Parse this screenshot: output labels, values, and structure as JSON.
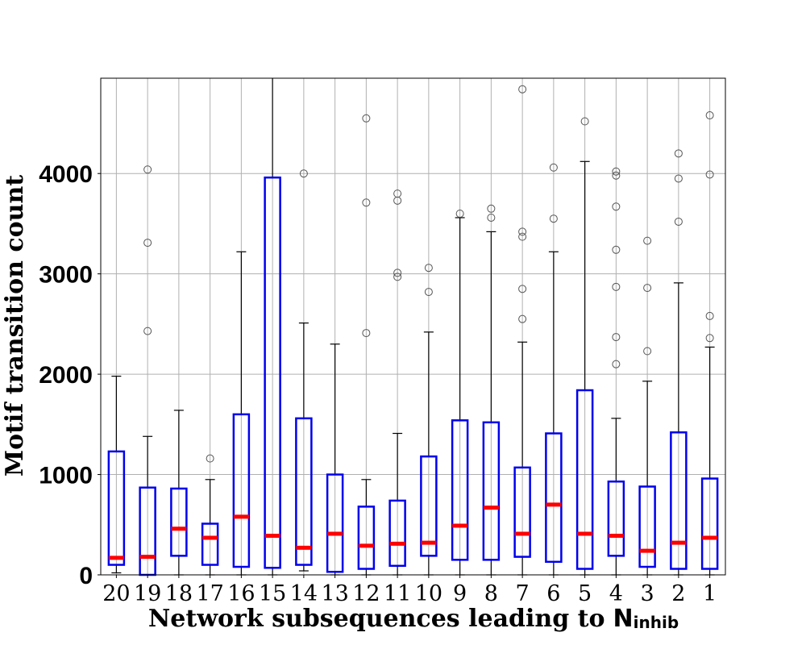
{
  "chart_data": {
    "type": "box",
    "ylabel": "Motif transition count",
    "xlabel_main": "Network subsequences leading to",
    "xlabel_symbol": "N",
    "xlabel_subscript": "inhib",
    "ylim": [
      0,
      4950
    ],
    "yticks": [
      "0",
      "1000",
      "2000",
      "3000",
      "4000"
    ],
    "ytick_values": [
      0,
      1000,
      2000,
      3000,
      4000
    ],
    "grid": true,
    "colors": {
      "box": "#0000ee",
      "median": "#ff0000",
      "whisker": "#000000",
      "outlier": "#555555",
      "grid": "#b0b0b0"
    },
    "boxes": [
      {
        "label": "20",
        "whislo": 20,
        "q1": 100,
        "median": 170,
        "q3": 1230,
        "whishi": 1980,
        "fliers": []
      },
      {
        "label": "19",
        "whislo": 0,
        "q1": 0,
        "median": 180,
        "q3": 870,
        "whishi": 1380,
        "fliers": [
          2430,
          3310,
          4040
        ]
      },
      {
        "label": "18",
        "whislo": 0,
        "q1": 190,
        "median": 460,
        "q3": 860,
        "whishi": 1640,
        "fliers": []
      },
      {
        "label": "17",
        "whislo": 0,
        "q1": 100,
        "median": 370,
        "q3": 510,
        "whishi": 950,
        "fliers": [
          1160
        ]
      },
      {
        "label": "16",
        "whislo": 0,
        "q1": 80,
        "median": 580,
        "q3": 1600,
        "whishi": 3220,
        "fliers": []
      },
      {
        "label": "15",
        "whislo": 0,
        "q1": 70,
        "median": 390,
        "q3": 3960,
        "whishi": 4950,
        "fliers": []
      },
      {
        "label": "14",
        "whislo": 40,
        "q1": 100,
        "median": 270,
        "q3": 1560,
        "whishi": 2510,
        "fliers": [
          4000
        ]
      },
      {
        "label": "13",
        "whislo": 0,
        "q1": 30,
        "median": 410,
        "q3": 1000,
        "whishi": 2300,
        "fliers": []
      },
      {
        "label": "12",
        "whislo": 0,
        "q1": 60,
        "median": 290,
        "q3": 680,
        "whishi": 950,
        "fliers": [
          2410,
          3710,
          4550
        ]
      },
      {
        "label": "11",
        "whislo": 0,
        "q1": 90,
        "median": 310,
        "q3": 740,
        "whishi": 1410,
        "fliers": [
          2970,
          3010,
          3730,
          3800
        ]
      },
      {
        "label": "10",
        "whislo": 0,
        "q1": 190,
        "median": 320,
        "q3": 1180,
        "whishi": 2420,
        "fliers": [
          2820,
          3060
        ]
      },
      {
        "label": "9",
        "whislo": 0,
        "q1": 150,
        "median": 490,
        "q3": 1540,
        "whishi": 3560,
        "fliers": [
          3600
        ]
      },
      {
        "label": "8",
        "whislo": 0,
        "q1": 150,
        "median": 670,
        "q3": 1520,
        "whishi": 3420,
        "fliers": [
          3560,
          3650
        ]
      },
      {
        "label": "7",
        "whislo": 0,
        "q1": 180,
        "median": 410,
        "q3": 1070,
        "whishi": 2320,
        "fliers": [
          2550,
          2850,
          3370,
          3420,
          4840
        ]
      },
      {
        "label": "6",
        "whislo": 0,
        "q1": 130,
        "median": 700,
        "q3": 1410,
        "whishi": 3220,
        "fliers": [
          3550,
          4060
        ]
      },
      {
        "label": "5",
        "whislo": 0,
        "q1": 60,
        "median": 410,
        "q3": 1840,
        "whishi": 4120,
        "fliers": [
          4520
        ]
      },
      {
        "label": "4",
        "whislo": 0,
        "q1": 190,
        "median": 390,
        "q3": 930,
        "whishi": 1560,
        "fliers": [
          2100,
          2370,
          2870,
          3240,
          3670,
          3980,
          4020
        ]
      },
      {
        "label": "3",
        "whislo": 0,
        "q1": 80,
        "median": 240,
        "q3": 880,
        "whishi": 1930,
        "fliers": [
          2230,
          2860,
          3330
        ]
      },
      {
        "label": "2",
        "whislo": 0,
        "q1": 60,
        "median": 320,
        "q3": 1420,
        "whishi": 2910,
        "fliers": [
          3520,
          3950,
          4200
        ]
      },
      {
        "label": "1",
        "whislo": 0,
        "q1": 60,
        "median": 370,
        "q3": 960,
        "whishi": 2270,
        "fliers": [
          2360,
          2580,
          3990,
          4580
        ]
      }
    ]
  }
}
